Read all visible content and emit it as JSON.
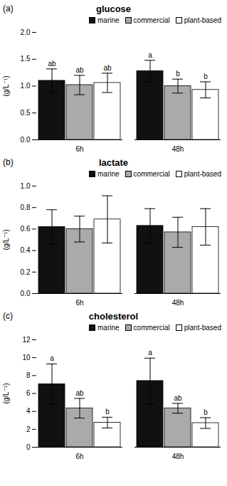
{
  "chart_data": [
    {
      "type": "bar",
      "title": "glucose",
      "annotations": [
        "(a)"
      ],
      "ylabel": "(g/L⁻¹)",
      "categories": [
        "6h",
        "48h"
      ],
      "series": [
        {
          "name": "marine",
          "color": "#111111",
          "values": [
            1.1,
            1.28
          ],
          "errors": [
            0.22,
            0.2
          ],
          "sig_labels": [
            "ab",
            "a"
          ]
        },
        {
          "name": "commercial",
          "color": "#aaaaaa",
          "values": [
            1.02,
            1.0
          ],
          "errors": [
            0.18,
            0.13
          ],
          "sig_labels": [
            "ab",
            "b"
          ]
        },
        {
          "name": "plant-based",
          "color": "#ffffff",
          "values": [
            1.06,
            0.93
          ],
          "errors": [
            0.18,
            0.15
          ],
          "sig_labels": [
            "ab",
            "b"
          ]
        }
      ],
      "ylim": [
        0.0,
        2.0
      ],
      "yticks": [
        {
          "value": 0.0,
          "label": "0.0"
        },
        {
          "value": 0.5,
          "label": "0.5"
        },
        {
          "value": 1.0,
          "label": "1.0"
        },
        {
          "value": 1.5,
          "label": "1.5"
        },
        {
          "value": 2.0,
          "label": "2.0"
        }
      ],
      "legend": "upper right"
    },
    {
      "type": "bar",
      "title": "lactate",
      "annotations": [
        "(b)"
      ],
      "ylabel": "(g/L⁻¹)",
      "categories": [
        "6h",
        "48h"
      ],
      "series": [
        {
          "name": "marine",
          "color": "#111111",
          "values": [
            0.62,
            0.63
          ],
          "errors": [
            0.16,
            0.16
          ]
        },
        {
          "name": "commercial",
          "color": "#aaaaaa",
          "values": [
            0.6,
            0.57
          ],
          "errors": [
            0.12,
            0.14
          ]
        },
        {
          "name": "plant-based",
          "color": "#ffffff",
          "values": [
            0.69,
            0.62
          ],
          "errors": [
            0.22,
            0.17
          ]
        }
      ],
      "ylim": [
        0.0,
        1.0
      ],
      "yticks": [
        {
          "value": 0.0,
          "label": "0.0"
        },
        {
          "value": 0.2,
          "label": "0.2"
        },
        {
          "value": 0.4,
          "label": "0.4"
        },
        {
          "value": 0.6,
          "label": "0.6"
        },
        {
          "value": 0.8,
          "label": "0.8"
        },
        {
          "value": 1.0,
          "label": "1.0"
        }
      ],
      "legend": "upper right"
    },
    {
      "type": "bar",
      "title": "cholesterol",
      "annotations": [
        "(c)"
      ],
      "ylabel": "(g/L⁻¹)",
      "categories": [
        "6h",
        "48h"
      ],
      "series": [
        {
          "name": "marine",
          "color": "#111111",
          "values": [
            7.05,
            7.4
          ],
          "errors": [
            2.25,
            2.55
          ],
          "sig_labels": [
            "a",
            "a"
          ]
        },
        {
          "name": "commercial",
          "color": "#aaaaaa",
          "values": [
            4.35,
            4.35
          ],
          "errors": [
            1.1,
            0.55
          ],
          "sig_labels": [
            "ab",
            "ab"
          ]
        },
        {
          "name": "plant-based",
          "color": "#ffffff",
          "values": [
            2.75,
            2.7
          ],
          "errors": [
            0.6,
            0.6
          ],
          "sig_labels": [
            "b",
            "b"
          ]
        }
      ],
      "ylim": [
        0,
        12
      ],
      "yticks": [
        0,
        2,
        4,
        6,
        8,
        10,
        12
      ],
      "legend": "upper right"
    }
  ]
}
